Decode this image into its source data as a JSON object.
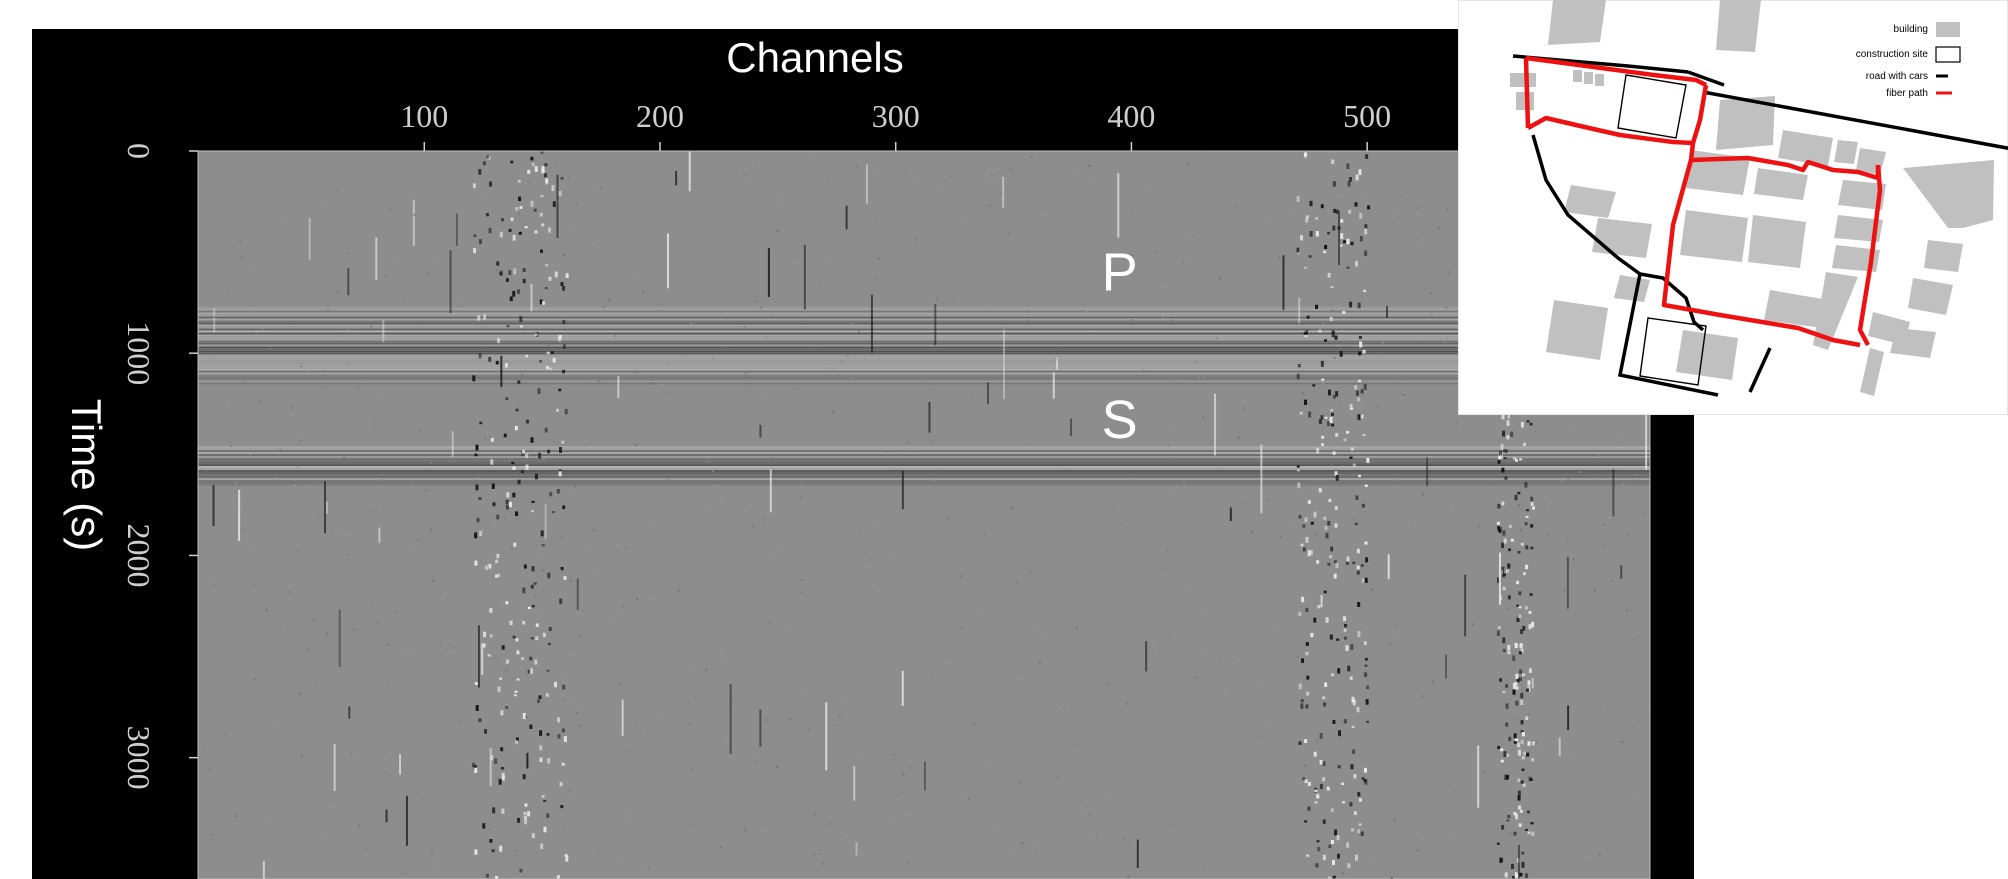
{
  "chart_data": {
    "type": "heatmap",
    "title": "",
    "xlabel": "Channels",
    "ylabel": "Time (s)",
    "x_ticks": [
      100,
      200,
      300,
      400,
      500
    ],
    "y_ticks": [
      0,
      1000,
      2000,
      3000
    ],
    "xlim": [
      4,
      620
    ],
    "ylim": [
      0,
      3600
    ],
    "colormap": "grayscale",
    "background": "#000000",
    "annotations": [
      {
        "label": "P",
        "channel": 395,
        "time": 590
      },
      {
        "label": "S",
        "channel": 395,
        "time": 1320
      }
    ],
    "events": [
      {
        "name": "P",
        "time_start": 770,
        "time_end": 1150
      },
      {
        "name": "S",
        "time_start": 1460,
        "time_end": 1650
      }
    ]
  },
  "inset_map": {
    "legend": [
      {
        "label": "building",
        "color": "#c0c0c0"
      },
      {
        "label": "construction site",
        "color": "#000000"
      },
      {
        "label": "road with cars",
        "color": "#000000"
      },
      {
        "label": "fiber path",
        "color": "#ee1111"
      }
    ]
  }
}
